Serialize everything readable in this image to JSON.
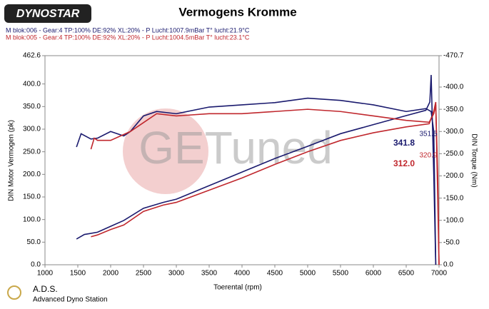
{
  "header": {
    "logo": "DYNOSTAR",
    "title": "Vermogens Kromme",
    "info": [
      {
        "text": "M blok:006 - Gear:4 TP:100% DE:92% XL:20%     - P Lucht:1007.9mBar T° lucht:21.9°C",
        "color": "#1a1a6e"
      },
      {
        "text": "M blok:005 - Gear:4 TP:100% DE:92% XL:20%     - P Lucht:1004.5mBar T° lucht:23.1°C",
        "color": "#c0272d"
      }
    ]
  },
  "footer": {
    "brand": "A.D.S.",
    "subtitle": "Advanced Dyno Station"
  },
  "chart_data": {
    "type": "line",
    "watermark": "GETuned",
    "xlabel": "Toerental (rpm)",
    "ylabel": "DIN Motor Vermogen (pk)",
    "y2label": "DIN Torque (Nm)",
    "xlim": [
      1000,
      7000
    ],
    "xticks": [
      1000,
      1500,
      2000,
      2500,
      3000,
      3500,
      4000,
      4500,
      5000,
      5500,
      6000,
      6500,
      7000
    ],
    "ylim": [
      0,
      462.6
    ],
    "yticks": [
      {
        "value": 0,
        "label": "0.0"
      },
      {
        "value": 50,
        "label": "50.0"
      },
      {
        "value": 100,
        "label": "100.0"
      },
      {
        "value": 150,
        "label": "150.0"
      },
      {
        "value": 200,
        "label": "200.0"
      },
      {
        "value": 250,
        "label": "250.0"
      },
      {
        "value": 300,
        "label": "300.0"
      },
      {
        "value": 350,
        "label": "350.0"
      },
      {
        "value": 400,
        "label": "400.0"
      },
      462.6
    ],
    "y2lim": [
      0,
      470.7
    ],
    "y2ticks": [
      {
        "value": 0,
        "label": "0.0"
      },
      {
        "value": 50,
        "label": "-50.0"
      },
      {
        "value": 100,
        "label": "-100.0"
      },
      {
        "value": 150,
        "label": "-150.0"
      },
      {
        "value": 200,
        "label": "-200.0"
      },
      {
        "value": 250,
        "label": "-250.0"
      },
      {
        "value": 300,
        "label": "-300.0"
      },
      {
        "value": 350,
        "label": "-350.0"
      },
      {
        "value": 400,
        "label": "-400.0"
      },
      {
        "value": 470.7,
        "label": "-470.7"
      }
    ],
    "series": [
      {
        "color": "#1a1a6e",
        "axis": "y",
        "x": [
          1480,
          1600,
          1800,
          2000,
          2200,
          2500,
          2800,
          3000,
          3500,
          4000,
          4500,
          5000,
          5500,
          6000,
          6500,
          6800,
          6860,
          6880,
          6920,
          6950
        ],
        "values": [
          57,
          67,
          72,
          85,
          98,
          125,
          138,
          145,
          175,
          205,
          235,
          262,
          290,
          310,
          330,
          341.8,
          360,
          420,
          200,
          0
        ]
      },
      {
        "color": "#c0272d",
        "axis": "y",
        "x": [
          1700,
          1800,
          2000,
          2200,
          2500,
          2800,
          3000,
          3500,
          4000,
          4500,
          5000,
          5500,
          6000,
          6500,
          6850,
          6920,
          6950,
          6980,
          7000
        ],
        "values": [
          62,
          66,
          78,
          88,
          118,
          132,
          138,
          165,
          192,
          222,
          250,
          275,
          292,
          305,
          312.0,
          340,
          360,
          150,
          0
        ]
      },
      {
        "color": "#1a1a6e",
        "axis": "y2",
        "x": [
          1480,
          1550,
          1700,
          1800,
          2000,
          2200,
          2300,
          2500,
          2700,
          3000,
          3500,
          4000,
          4500,
          5000,
          5500,
          6000,
          6500,
          6800,
          6880,
          6920,
          6950
        ],
        "values": [
          265,
          295,
          283,
          285,
          300,
          290,
          300,
          335,
          345,
          340,
          355,
          360,
          365,
          375,
          370,
          360,
          345,
          351.5,
          345,
          300,
          0
        ]
      },
      {
        "color": "#c0272d",
        "axis": "y2",
        "x": [
          1700,
          1750,
          1800,
          2000,
          2300,
          2500,
          2700,
          3000,
          3500,
          4000,
          4500,
          5000,
          5500,
          6000,
          6500,
          6850,
          6920,
          6950,
          6980,
          7000
        ],
        "values": [
          260,
          285,
          280,
          280,
          300,
          320,
          340,
          335,
          340,
          340,
          345,
          350,
          345,
          335,
          325,
          320.9,
          340,
          360,
          200,
          0
        ]
      }
    ],
    "annotations": [
      {
        "text": "341.8",
        "color": "#1a1a6e"
      },
      {
        "text": "312.0",
        "color": "#c0272d"
      },
      {
        "text": "351.5",
        "color": "#1a1a6e"
      },
      {
        "text": "320.9",
        "color": "#c0272d"
      }
    ]
  }
}
